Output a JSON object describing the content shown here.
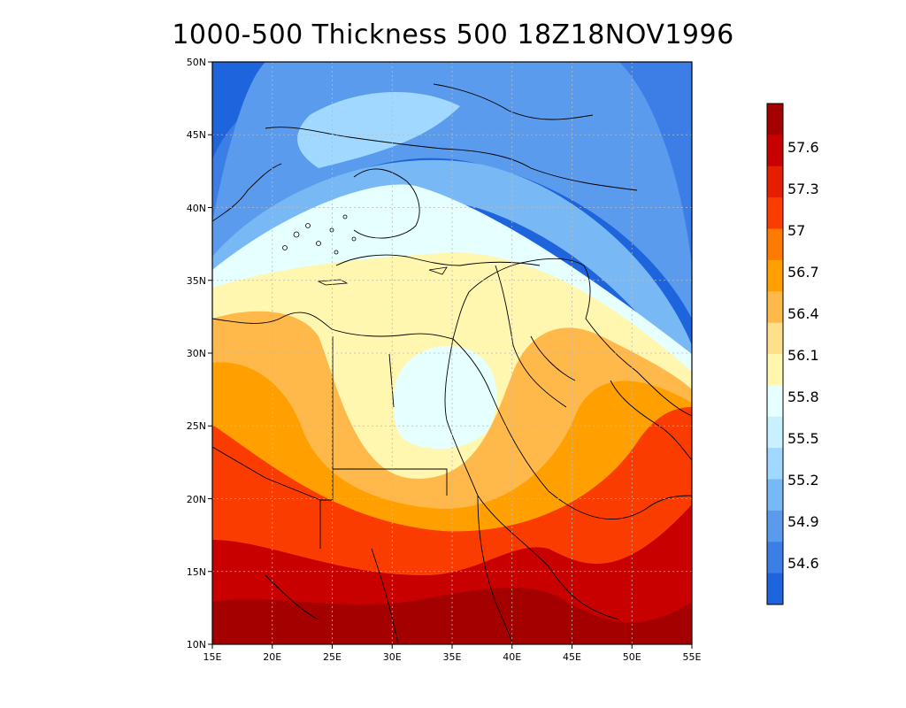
{
  "title": "1000-500 Thickness 500 18Z18NOV1996",
  "map": {
    "lon_range": [
      15,
      55
    ],
    "lat_range": [
      10,
      50
    ],
    "x_ticks": [
      "15E",
      "20E",
      "25E",
      "30E",
      "35E",
      "40E",
      "45E",
      "50E",
      "55E"
    ],
    "y_ticks": [
      "10N",
      "15N",
      "20N",
      "25N",
      "30N",
      "35N",
      "40N",
      "45N",
      "50N"
    ],
    "grid": "dotted"
  },
  "colorbar": {
    "labels": [
      "57.6",
      "57.3",
      "57",
      "56.7",
      "56.4",
      "56.1",
      "55.8",
      "55.5",
      "55.2",
      "54.9",
      "54.6"
    ],
    "colors": [
      "#a50000",
      "#c80000",
      "#e61e00",
      "#fa3c00",
      "#ff7a00",
      "#ffa000",
      "#ffb84a",
      "#ffe08a",
      "#fff6b0",
      "#e6ffff",
      "#c8f0ff",
      "#a0d8ff",
      "#78b9f5",
      "#5a9bed",
      "#3c7ee6",
      "#1e64dc"
    ]
  }
}
